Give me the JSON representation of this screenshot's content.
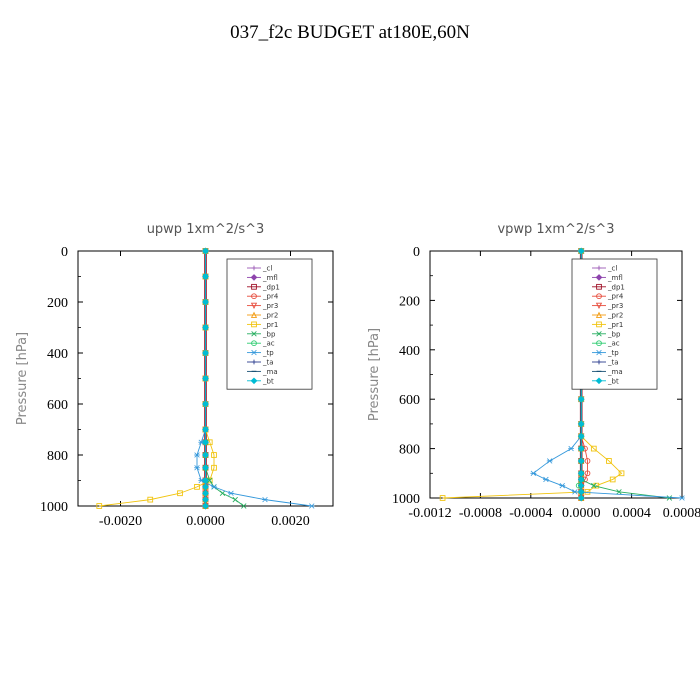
{
  "figure": {
    "title": "037_f2c  BUDGET at180E,60N"
  },
  "chart_data": [
    {
      "type": "line",
      "title": "upwp   1xm^2/s^3",
      "ylabel": "Pressure [hPa]",
      "xlabel": "",
      "xlim": [
        -0.003,
        0.003
      ],
      "ylim": [
        1000,
        0
      ],
      "x_ticks": [
        -0.002,
        0.0,
        0.002
      ],
      "x_tick_labels": [
        "-0.0020",
        "0.0000",
        "0.0020"
      ],
      "y_ticks": [
        0,
        200,
        400,
        600,
        800,
        1000
      ],
      "y_tick_labels": [
        "0",
        "200",
        "400",
        "600",
        "800",
        "1000"
      ],
      "legend_position": "top-right",
      "grid": false,
      "pressure": [
        0,
        100,
        200,
        300,
        400,
        500,
        600,
        700,
        750,
        800,
        850,
        900,
        925,
        950,
        975,
        1000
      ],
      "series": [
        {
          "name": "_cl",
          "color": "#9b59b6",
          "marker": "+",
          "values": [
            0,
            0,
            0,
            0,
            0,
            0,
            0,
            0,
            0,
            0,
            0,
            0,
            0,
            0,
            0,
            0
          ]
        },
        {
          "name": "_mfl",
          "color": "#8e44ad",
          "marker": "diamond",
          "values": [
            0,
            0,
            0,
            0,
            0,
            0,
            0,
            0,
            0,
            0,
            0,
            0,
            0,
            0,
            0,
            0
          ]
        },
        {
          "name": "_dp1",
          "color": "#a0142a",
          "marker": "square",
          "values": [
            0,
            0,
            0,
            0,
            0,
            0,
            0,
            0,
            0,
            0,
            0,
            0,
            0,
            0,
            0,
            0
          ]
        },
        {
          "name": "_pr4",
          "color": "#e74c3c",
          "marker": "circle",
          "values": [
            0,
            0,
            0,
            0,
            0,
            0,
            0,
            0,
            0,
            0,
            0,
            0,
            0,
            0,
            0,
            0
          ]
        },
        {
          "name": "_pr3",
          "color": "#e74c3c",
          "marker": "triangle-down",
          "values": [
            0,
            0,
            0,
            0,
            0,
            0,
            0,
            0,
            0,
            0,
            0,
            0,
            0,
            0,
            0,
            0
          ]
        },
        {
          "name": "_pr2",
          "color": "#f39c12",
          "marker": "triangle",
          "values": [
            0,
            0,
            0,
            0,
            0,
            0,
            0,
            0,
            0,
            0,
            0,
            0,
            0,
            0,
            0,
            0
          ]
        },
        {
          "name": "_pr1",
          "color": "#f1c40f",
          "marker": "square",
          "values": [
            0,
            0,
            0,
            0,
            0,
            0,
            0,
            0,
            0.0001,
            0.0002,
            0.0002,
            0.0001,
            -0.0002,
            -0.0006,
            -0.0013,
            -0.0025
          ]
        },
        {
          "name": "_bp",
          "color": "#27ae60",
          "marker": "x",
          "values": [
            0,
            0,
            0,
            0,
            0,
            0,
            0,
            0,
            0,
            0,
            0,
            0.0001,
            0.0002,
            0.0004,
            0.0007,
            0.0009
          ]
        },
        {
          "name": "_ac",
          "color": "#2ecc71",
          "marker": "circle",
          "values": [
            0,
            0,
            0,
            0,
            0,
            0,
            0,
            0,
            0,
            0,
            0,
            0,
            0,
            0,
            0,
            0
          ]
        },
        {
          "name": "_tp",
          "color": "#3498db",
          "marker": "star",
          "values": [
            0,
            0,
            0,
            0,
            0,
            0,
            0,
            0,
            -0.0001,
            -0.0002,
            -0.0002,
            -0.0001,
            0.0002,
            0.0006,
            0.0014,
            0.0025
          ]
        },
        {
          "name": "_ta",
          "color": "#2c3e8f",
          "marker": "+",
          "values": [
            0,
            0,
            0,
            0,
            0,
            0,
            0,
            0,
            0,
            0,
            0,
            0,
            0,
            0,
            0,
            0
          ]
        },
        {
          "name": "_ma",
          "color": "#1a5276",
          "marker": "-",
          "values": [
            0,
            0,
            0,
            0,
            0,
            0,
            0,
            0,
            0,
            0,
            0,
            0,
            0,
            0,
            0,
            0
          ]
        },
        {
          "name": "_bt",
          "color": "#00bcd4",
          "marker": "diamond",
          "values": [
            0,
            0,
            0,
            0,
            0,
            0,
            0,
            0,
            0,
            0,
            0,
            0,
            0,
            0,
            0,
            0
          ]
        }
      ]
    },
    {
      "type": "line",
      "title": "vpwp   1xm^2/s^3",
      "ylabel": "Pressure [hPa]",
      "xlabel": "",
      "xlim": [
        -0.0012,
        0.0008
      ],
      "ylim": [
        1000,
        0
      ],
      "x_ticks": [
        -0.0012,
        -0.0008,
        -0.0004,
        0.0,
        0.0004,
        0.0008
      ],
      "x_tick_labels": [
        "-0.0012",
        "-0.0008",
        "-0.0004",
        "0.0000",
        "0.0004",
        "0.0008"
      ],
      "y_ticks": [
        0,
        200,
        400,
        600,
        800,
        1000
      ],
      "y_tick_labels": [
        "0",
        "200",
        "400",
        "600",
        "800",
        "1000"
      ],
      "legend_position": "top-right",
      "grid": false,
      "pressure": [
        0,
        100,
        200,
        300,
        400,
        500,
        600,
        700,
        750,
        800,
        850,
        900,
        925,
        950,
        975,
        1000
      ],
      "series": [
        {
          "name": "_cl",
          "color": "#9b59b6",
          "marker": "+",
          "values": [
            0,
            0,
            0,
            0,
            0,
            0,
            0,
            0,
            0,
            0,
            0,
            0,
            0,
            0,
            0,
            0
          ]
        },
        {
          "name": "_mfl",
          "color": "#8e44ad",
          "marker": "diamond",
          "values": [
            0,
            0,
            0,
            0,
            0,
            0,
            0,
            0,
            0,
            0,
            0,
            0,
            0,
            0,
            0,
            0
          ]
        },
        {
          "name": "_dp1",
          "color": "#a0142a",
          "marker": "square",
          "values": [
            0,
            0,
            0,
            0,
            0,
            0,
            0,
            0,
            0,
            0,
            0,
            0,
            0,
            0,
            0,
            0
          ]
        },
        {
          "name": "_pr4",
          "color": "#e74c3c",
          "marker": "circle",
          "values": [
            0,
            0,
            0,
            0,
            0,
            0,
            0,
            0,
            0,
            3e-05,
            5e-05,
            5e-05,
            3e-05,
            0,
            0,
            0
          ]
        },
        {
          "name": "_pr3",
          "color": "#e74c3c",
          "marker": "triangle-down",
          "values": [
            0,
            0,
            0,
            0,
            0,
            0,
            0,
            0,
            0,
            0,
            0,
            0,
            0,
            0,
            0,
            0
          ]
        },
        {
          "name": "_pr2",
          "color": "#f39c12",
          "marker": "triangle",
          "values": [
            0,
            0,
            0,
            0,
            0,
            0,
            0,
            0,
            0,
            0,
            0,
            0,
            0,
            0,
            0,
            0
          ]
        },
        {
          "name": "_pr1",
          "color": "#f1c40f",
          "marker": "square",
          "values": [
            0,
            0,
            0,
            0,
            0,
            0,
            0,
            0,
            0,
            0.0001,
            0.00022,
            0.00032,
            0.00025,
            0.00012,
            5e-05,
            -0.0011
          ]
        },
        {
          "name": "_bp",
          "color": "#27ae60",
          "marker": "x",
          "values": [
            0,
            0,
            0,
            0,
            0,
            0,
            0,
            0,
            0,
            0,
            0,
            0,
            0,
            0.0001,
            0.0003,
            0.0007
          ]
        },
        {
          "name": "_ac",
          "color": "#2ecc71",
          "marker": "circle",
          "values": [
            0,
            0,
            0,
            0,
            0,
            0,
            0,
            0,
            0,
            0,
            0,
            0,
            0,
            -2e-05,
            0,
            0
          ]
        },
        {
          "name": "_tp",
          "color": "#3498db",
          "marker": "star",
          "values": [
            0,
            0,
            0,
            0,
            0,
            0,
            0,
            0,
            0,
            -8e-05,
            -0.00025,
            -0.00038,
            -0.00028,
            -0.00015,
            -5e-05,
            0.0008
          ]
        },
        {
          "name": "_ta",
          "color": "#2c3e8f",
          "marker": "+",
          "values": [
            0,
            0,
            0,
            0,
            0,
            0,
            0,
            0,
            0,
            0,
            0,
            0,
            0,
            0,
            0,
            0
          ]
        },
        {
          "name": "_ma",
          "color": "#1a5276",
          "marker": "-",
          "values": [
            0,
            0,
            0,
            0,
            0,
            0,
            0,
            0,
            0,
            0,
            0,
            0,
            0,
            0,
            0,
            0
          ]
        },
        {
          "name": "_bt",
          "color": "#00bcd4",
          "marker": "diamond",
          "values": [
            0,
            0,
            0,
            0,
            0,
            0,
            0,
            0,
            0,
            0,
            0,
            0,
            0,
            0,
            0,
            0
          ]
        }
      ]
    }
  ]
}
